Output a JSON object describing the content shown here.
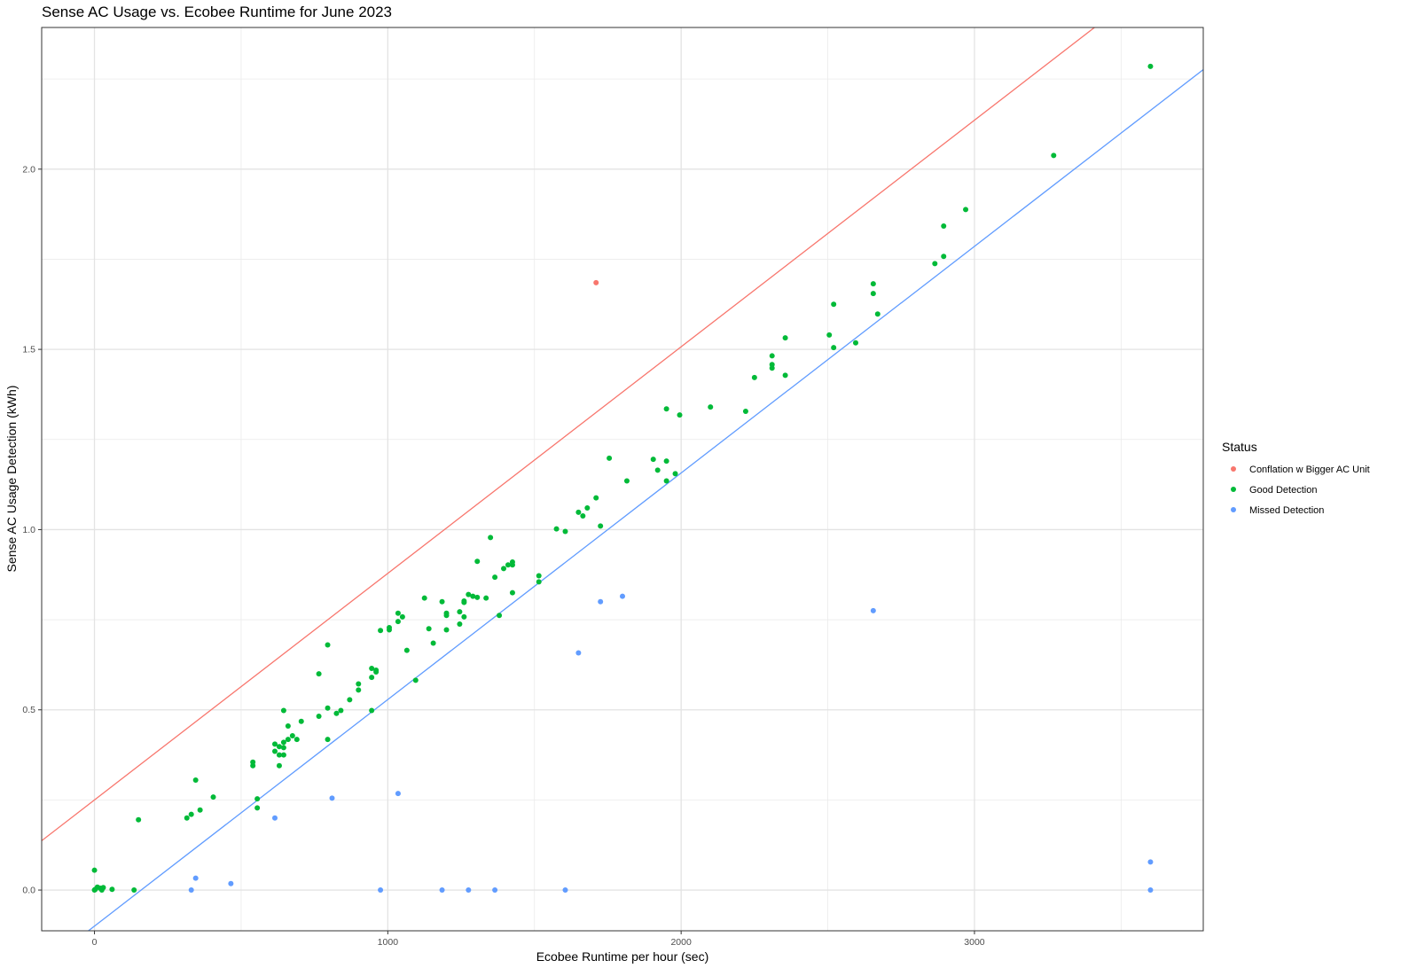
{
  "chart_data": {
    "type": "scatter",
    "title": "Sense AC Usage vs. Ecobee Runtime for June 2023",
    "xlabel": "Ecobee Runtime per hour (sec)",
    "ylabel": "Sense AC Usage Detection (kWh)",
    "xlim": [
      -180,
      3780
    ],
    "ylim": [
      -0.113,
      2.393
    ],
    "x_ticks": [
      0,
      1000,
      2000,
      3000
    ],
    "x_tick_labels": [
      "0",
      "1000",
      "2000",
      "3000"
    ],
    "y_ticks": [
      0.0,
      0.5,
      1.0,
      1.5,
      2.0
    ],
    "y_tick_labels": [
      "0.0",
      "0.5",
      "1.0",
      "1.5",
      "2.0"
    ],
    "grid": true,
    "legend_title": "Status",
    "legend_position": "right",
    "series": [
      {
        "name": "Conflation w Bigger AC Unit",
        "color": "#F8766D",
        "points": [
          [
            1710,
            1.685
          ]
        ]
      },
      {
        "name": "Good Detection",
        "color": "#00BA38",
        "points": [
          [
            0,
            0.0
          ],
          [
            0,
            0.055
          ],
          [
            3,
            0.002
          ],
          [
            10,
            0.008
          ],
          [
            20,
            0.005
          ],
          [
            25,
            0.0
          ],
          [
            30,
            0.007
          ],
          [
            60,
            0.002
          ],
          [
            135,
            0.0
          ],
          [
            150,
            0.195
          ],
          [
            315,
            0.2
          ],
          [
            330,
            0.21
          ],
          [
            345,
            0.305
          ],
          [
            360,
            0.222
          ],
          [
            405,
            0.258
          ],
          [
            540,
            0.355
          ],
          [
            540,
            0.345
          ],
          [
            555,
            0.253
          ],
          [
            555,
            0.228
          ],
          [
            615,
            0.405
          ],
          [
            615,
            0.385
          ],
          [
            630,
            0.398
          ],
          [
            630,
            0.375
          ],
          [
            630,
            0.345
          ],
          [
            645,
            0.41
          ],
          [
            645,
            0.395
          ],
          [
            645,
            0.375
          ],
          [
            645,
            0.498
          ],
          [
            660,
            0.418
          ],
          [
            660,
            0.455
          ],
          [
            675,
            0.428
          ],
          [
            690,
            0.418
          ],
          [
            705,
            0.468
          ],
          [
            765,
            0.6
          ],
          [
            765,
            0.482
          ],
          [
            795,
            0.68
          ],
          [
            795,
            0.505
          ],
          [
            795,
            0.418
          ],
          [
            825,
            0.49
          ],
          [
            840,
            0.498
          ],
          [
            870,
            0.528
          ],
          [
            900,
            0.572
          ],
          [
            900,
            0.555
          ],
          [
            945,
            0.615
          ],
          [
            945,
            0.59
          ],
          [
            945,
            0.498
          ],
          [
            960,
            0.61
          ],
          [
            960,
            0.605
          ],
          [
            975,
            0.72
          ],
          [
            1005,
            0.728
          ],
          [
            1005,
            0.722
          ],
          [
            1035,
            0.768
          ],
          [
            1035,
            0.745
          ],
          [
            1050,
            0.758
          ],
          [
            1065,
            0.665
          ],
          [
            1095,
            0.582
          ],
          [
            1125,
            0.81
          ],
          [
            1140,
            0.725
          ],
          [
            1155,
            0.685
          ],
          [
            1185,
            0.8
          ],
          [
            1200,
            0.768
          ],
          [
            1200,
            0.762
          ],
          [
            1200,
            0.722
          ],
          [
            1245,
            0.772
          ],
          [
            1245,
            0.738
          ],
          [
            1260,
            0.802
          ],
          [
            1260,
            0.798
          ],
          [
            1260,
            0.758
          ],
          [
            1275,
            0.82
          ],
          [
            1290,
            0.815
          ],
          [
            1305,
            0.912
          ],
          [
            1305,
            0.812
          ],
          [
            1335,
            0.81
          ],
          [
            1350,
            0.978
          ],
          [
            1365,
            0.868
          ],
          [
            1380,
            0.762
          ],
          [
            1395,
            0.892
          ],
          [
            1410,
            0.902
          ],
          [
            1425,
            0.91
          ],
          [
            1425,
            0.902
          ],
          [
            1425,
            0.825
          ],
          [
            1515,
            0.872
          ],
          [
            1515,
            0.855
          ],
          [
            1575,
            1.002
          ],
          [
            1605,
            0.995
          ],
          [
            1650,
            1.048
          ],
          [
            1665,
            1.038
          ],
          [
            1680,
            1.06
          ],
          [
            1710,
            1.088
          ],
          [
            1725,
            1.01
          ],
          [
            1755,
            1.198
          ],
          [
            1815,
            1.135
          ],
          [
            1905,
            1.195
          ],
          [
            1920,
            1.165
          ],
          [
            1950,
            1.335
          ],
          [
            1950,
            1.19
          ],
          [
            1950,
            1.135
          ],
          [
            1980,
            1.155
          ],
          [
            1995,
            1.318
          ],
          [
            2100,
            1.34
          ],
          [
            2220,
            1.328
          ],
          [
            2250,
            1.422
          ],
          [
            2310,
            1.482
          ],
          [
            2310,
            1.458
          ],
          [
            2310,
            1.448
          ],
          [
            2355,
            1.532
          ],
          [
            2355,
            1.428
          ],
          [
            2505,
            1.54
          ],
          [
            2520,
            1.625
          ],
          [
            2520,
            1.505
          ],
          [
            2595,
            1.518
          ],
          [
            2655,
            1.682
          ],
          [
            2655,
            1.655
          ],
          [
            2670,
            1.598
          ],
          [
            2865,
            1.738
          ],
          [
            2895,
            1.842
          ],
          [
            2895,
            1.758
          ],
          [
            2970,
            1.888
          ],
          [
            3270,
            2.038
          ],
          [
            3600,
            2.285
          ]
        ]
      },
      {
        "name": "Missed Detection",
        "color": "#619CFF",
        "points": [
          [
            330,
            0.0
          ],
          [
            345,
            0.033
          ],
          [
            465,
            0.018
          ],
          [
            615,
            0.2
          ],
          [
            810,
            0.255
          ],
          [
            975,
            0.0
          ],
          [
            1035,
            0.268
          ],
          [
            1185,
            0.0
          ],
          [
            1275,
            0.0
          ],
          [
            1365,
            0.0
          ],
          [
            1605,
            0.0
          ],
          [
            1650,
            0.658
          ],
          [
            1725,
            0.8
          ],
          [
            1800,
            0.815
          ],
          [
            2655,
            0.775
          ],
          [
            3600,
            0.078
          ],
          [
            3600,
            0.0
          ]
        ]
      }
    ],
    "lines": [
      {
        "series": "Conflation w Bigger AC Unit",
        "color": "#F8766D",
        "intercept": 0.25,
        "slope": 0.0006286
      },
      {
        "series": "Missed Detection",
        "color": "#619CFF",
        "intercept": -0.1,
        "slope": 0.0006286
      }
    ]
  }
}
